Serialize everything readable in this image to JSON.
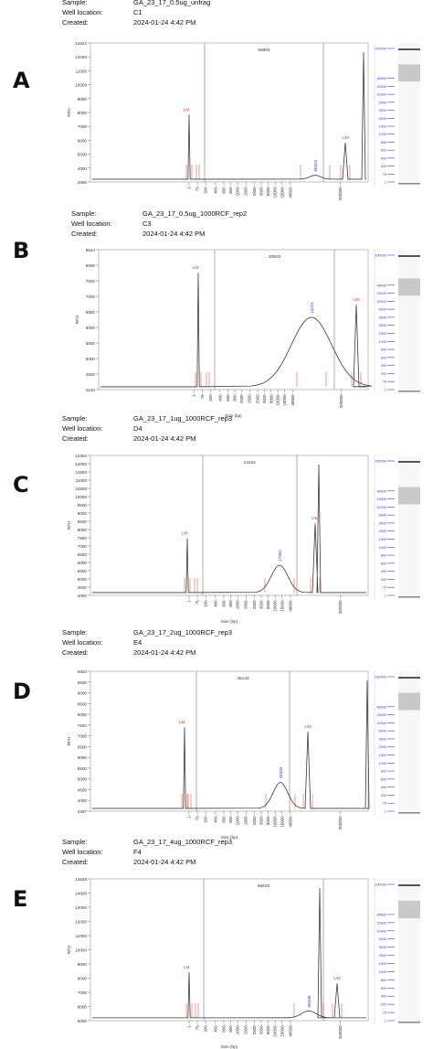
{
  "meta_keys": {
    "sample": "Sample:",
    "well": "Well location:",
    "created": "Created:"
  },
  "shared": {
    "y_axis_label": "RFU",
    "x_axis_label": "Size (bp)",
    "x_ticks": [
      "1-",
      "75-",
      "200-",
      "400-",
      "600-",
      "800-",
      "1000-",
      "1500-",
      "2500-",
      "3500-",
      "5000-",
      "10000-",
      "15000-",
      "48500-",
      "200000-"
    ],
    "ladder_ticks": [
      "1",
      "75",
      "200",
      "400",
      "600",
      "800",
      "1000",
      "1500",
      "2500",
      "3500",
      "5000",
      "10000",
      "15000",
      "48500",
      "200000"
    ],
    "lm_label": "LM",
    "um_label": "UM",
    "colors": {
      "trace": "#3a3a3a",
      "marker": "#e23b2e",
      "ladder": "#2d3fd8",
      "axis": "#666666"
    }
  },
  "panels": [
    {
      "letter": "A",
      "sample": "GA_23_17_0.5ug_unfrag",
      "well": "C1",
      "created": "2024-01-24 4:42 PM",
      "smear_label": "56802",
      "peak_label": "66920",
      "ytick_labels": [
        "12622",
        "12000",
        "11000",
        "10000",
        "9000",
        "8000",
        "7000",
        "6000",
        "5000",
        "4000",
        "3666"
      ],
      "chart_data": {
        "type": "line",
        "ylabel": "RFU",
        "xlabel": "Size (bp)",
        "ylim": [
          3666,
          12622
        ],
        "y_ticks": [
          12000,
          11000,
          10000,
          9000,
          8000,
          7000,
          6000,
          5000,
          4000
        ],
        "x_scale": "log",
        "xlim": [
          1,
          200000
        ],
        "lower_marker": {
          "label": "LM",
          "size_bp": 1,
          "height": 8000
        },
        "upper_marker": {
          "label": "UM",
          "size_bp": 200000,
          "height": 6200
        },
        "peak": {
          "label": "66920",
          "size_bp": 66920,
          "height": 4100
        },
        "smear_region_label": "56802"
      }
    },
    {
      "letter": "B",
      "sample": "GA_23_17_0.5ug_1000RCF_rep2",
      "well": "C3",
      "created": "2024-01-24 4:42 PM",
      "smear_label": "20603",
      "peak_label": "14231",
      "ytick_labels": [
        "8524",
        "8000",
        "7500",
        "7000",
        "6500",
        "6000",
        "5500",
        "5000",
        "4500",
        "4134"
      ],
      "chart_data": {
        "type": "line",
        "ylabel": "RFU",
        "xlabel": "Size (bp)",
        "ylim": [
          4134,
          8524
        ],
        "y_ticks": [
          8000,
          7500,
          7000,
          6500,
          6000,
          5500,
          5000,
          4500
        ],
        "x_scale": "log",
        "xlim": [
          1,
          200000
        ],
        "lower_marker": {
          "label": "LM",
          "size_bp": 1,
          "height": 7800
        },
        "upper_marker": {
          "label": "UM",
          "size_bp": 200000,
          "height": 6800
        },
        "peak": {
          "label": "14231",
          "size_bp": 14231,
          "height": 6400
        },
        "smear_region_label": "20603"
      }
    },
    {
      "letter": "C",
      "sample": "GA_23_17_1ug_1000RCF_rep3",
      "well": "D4",
      "created": "2024-01-24 4:42 PM",
      "smear_label": "24161",
      "peak_label": "17352",
      "ytick_labels": [
        "12354",
        "12000",
        "11500",
        "11000",
        "10500",
        "10000",
        "9500",
        "9000",
        "8500",
        "8000",
        "7500",
        "7000",
        "6500",
        "6000",
        "5500",
        "5000",
        "4500",
        "4000"
      ],
      "chart_data": {
        "type": "line",
        "ylabel": "RFU",
        "xlabel": "Size (bp)",
        "ylim": [
          4000,
          12354
        ],
        "y_ticks": [
          12000,
          11500,
          11000,
          10500,
          10000,
          9500,
          9000,
          8500,
          8000,
          7500,
          7000,
          6500,
          6000,
          5500,
          5000,
          4500
        ],
        "x_scale": "log",
        "xlim": [
          1,
          200000
        ],
        "lower_marker": {
          "label": "LM",
          "size_bp": 1,
          "height": 7400
        },
        "upper_marker": {
          "label": "UM",
          "size_bp": 200000,
          "height": 8300
        },
        "peak": {
          "label": "17352",
          "size_bp": 17352,
          "height": 5800
        },
        "smear_region_label": "24161"
      }
    },
    {
      "letter": "D",
      "sample": "GA_23_17_2ug_1000RCF_rep3",
      "well": "E4",
      "created": "2024-01-24 4:42 PM",
      "smear_label": "45143",
      "peak_label": "44849",
      "ytick_labels": [
        "9834",
        "9500",
        "9000",
        "8500",
        "8000",
        "7500",
        "7000",
        "6500",
        "6000",
        "5500",
        "5000",
        "4500",
        "4000",
        "3497"
      ],
      "chart_data": {
        "type": "line",
        "ylabel": "RFU",
        "xlabel": "Size (bp)",
        "ylim": [
          3497,
          9834
        ],
        "y_ticks": [
          9500,
          9000,
          8500,
          8000,
          7500,
          7000,
          6500,
          6000,
          5500,
          5000,
          4500,
          4000
        ],
        "x_scale": "log",
        "xlim": [
          1,
          200000
        ],
        "lower_marker": {
          "label": "LM",
          "size_bp": 1,
          "height": 7300
        },
        "upper_marker": {
          "label": "UM",
          "size_bp": 200000,
          "height": 7100
        },
        "peak": {
          "label": "44849",
          "size_bp": 44849,
          "height": 4800
        },
        "smear_region_label": "45143"
      }
    },
    {
      "letter": "E",
      "sample": "GA_23_17_4ug_1000RCF_rep3",
      "well": "F4",
      "created": "2024-01-24 4:42 PM",
      "smear_label": "65620",
      "peak_label": "56436",
      "ytick_labels": [
        "14538",
        "14000",
        "13000",
        "12000",
        "11000",
        "10000",
        "9000",
        "8000",
        "7000",
        "6000",
        "5000"
      ],
      "chart_data": {
        "type": "line",
        "ylabel": "RFU",
        "xlabel": "Size (bp)",
        "ylim": [
          4300,
          14538
        ],
        "y_ticks": [
          14000,
          13000,
          12000,
          11000,
          10000,
          9000,
          8000,
          7000,
          6000,
          5000
        ],
        "x_scale": "log",
        "xlim": [
          1,
          200000
        ],
        "lower_marker": {
          "label": "LM",
          "size_bp": 1,
          "height": 7800
        },
        "upper_marker": {
          "label": "UM",
          "size_bp": 200000,
          "height": 7000
        },
        "peak": {
          "label": "56436",
          "size_bp": 56436,
          "height": 5000
        },
        "smear_region_label": "65620"
      }
    }
  ]
}
